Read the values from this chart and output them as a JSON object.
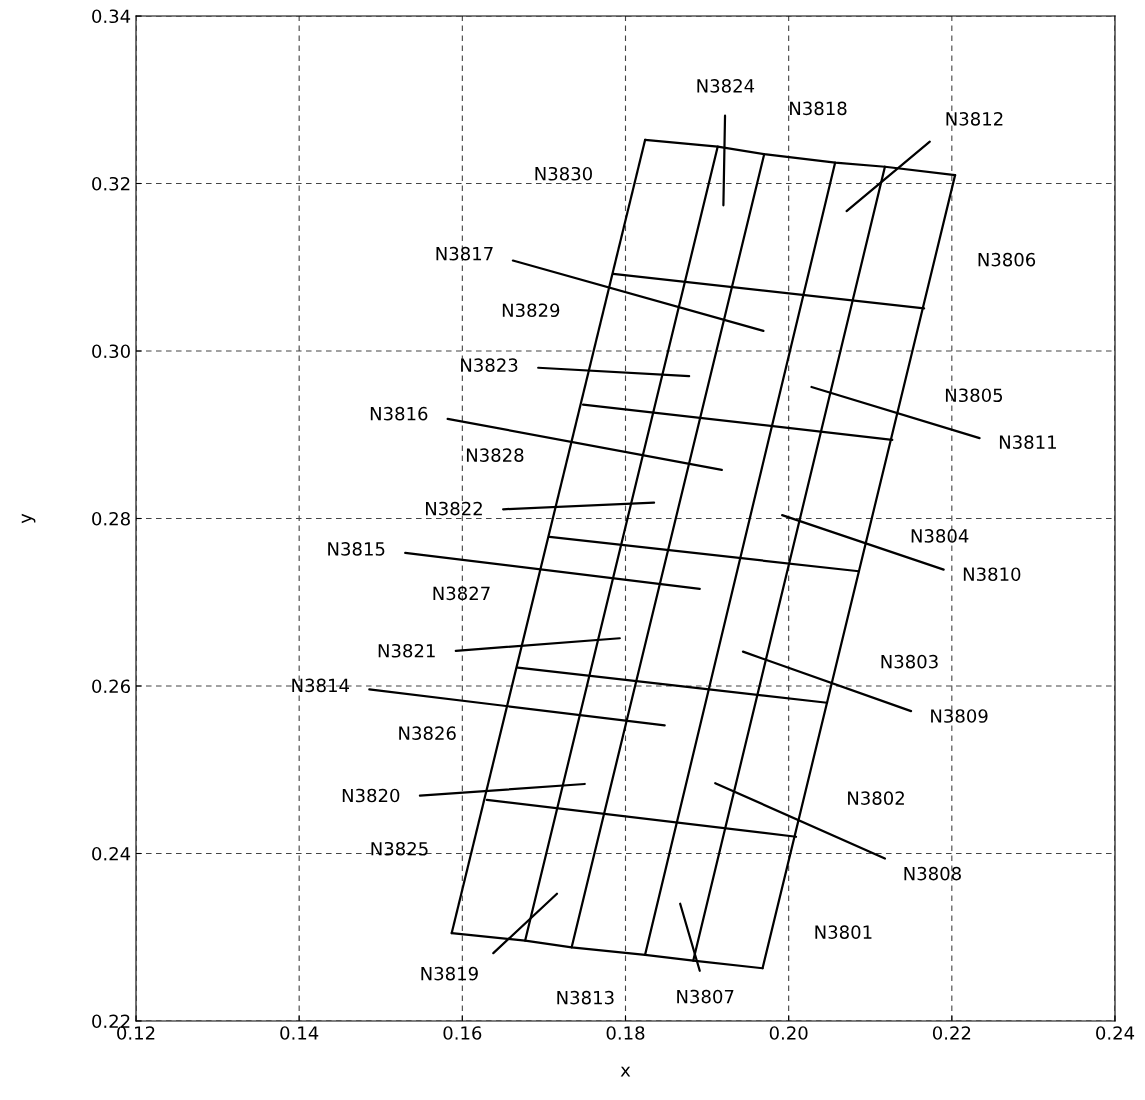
{
  "chart_data": {
    "type": "line",
    "xlabel": "x",
    "ylabel": "y",
    "xlim": [
      0.12,
      0.24
    ],
    "ylim": [
      0.22,
      0.34
    ],
    "xticks": [
      0.12,
      0.14,
      0.16,
      0.18,
      {
        "value": 0.2,
        "label": "0.20"
      },
      0.22,
      0.24
    ],
    "yticks": [
      0.22,
      0.24,
      0.26,
      0.28,
      {
        "value": 0.3,
        "label": "0.30"
      },
      0.32,
      0.34
    ],
    "grid": true,
    "series": [
      {
        "color": "#000000",
        "x": [
          0.1824,
          0.1913,
          0.197,
          0.2057,
          0.2118,
          0.2204
        ],
        "values": [
          0.3252,
          0.3244,
          0.3235,
          0.3225,
          0.322,
          0.321
        ]
      },
      {
        "color": "#000000",
        "x": [
          0.1587,
          0.1677,
          0.1734,
          0.1824,
          0.1883,
          0.1968
        ],
        "values": [
          0.2305,
          0.2296,
          0.2288,
          0.2279,
          0.2272,
          0.2263
        ]
      },
      {
        "color": "#000000",
        "x": [
          0.1824,
          0.1587
        ],
        "values": [
          0.3252,
          0.2305
        ]
      },
      {
        "color": "#000000",
        "x": [
          0.1913,
          0.1677
        ],
        "values": [
          0.3244,
          0.2296
        ]
      },
      {
        "color": "#000000",
        "x": [
          0.197,
          0.1734
        ],
        "values": [
          0.3235,
          0.2288
        ]
      },
      {
        "color": "#000000",
        "x": [
          0.2057,
          0.1824
        ],
        "values": [
          0.3225,
          0.2279
        ]
      },
      {
        "color": "#000000",
        "x": [
          0.2118,
          0.1883
        ],
        "values": [
          0.322,
          0.2272
        ]
      },
      {
        "color": "#000000",
        "x": [
          0.2204,
          0.1968
        ],
        "values": [
          0.321,
          0.2263
        ]
      },
      {
        "color": "#000000",
        "x": [
          0.1785,
          0.2166
        ],
        "values": [
          0.3092,
          0.3051
        ]
      },
      {
        "color": "#000000",
        "x": [
          0.1748,
          0.2127
        ],
        "values": [
          0.2936,
          0.2894
        ]
      },
      {
        "color": "#000000",
        "x": [
          0.1707,
          0.2086
        ],
        "values": [
          0.2778,
          0.2737
        ]
      },
      {
        "color": "#000000",
        "x": [
          0.1668,
          0.2047
        ],
        "values": [
          0.2622,
          0.258
        ]
      },
      {
        "color": "#000000",
        "x": [
          0.163,
          0.2009
        ],
        "values": [
          0.2464,
          0.242
        ]
      },
      {
        "color": "#000000",
        "x": [
          0.1922,
          0.192
        ],
        "values": [
          0.3281,
          0.3174
        ]
      },
      {
        "color": "#000000",
        "x": [
          0.2173,
          0.2071
        ],
        "values": [
          0.325,
          0.3167
        ]
      },
      {
        "color": "#000000",
        "x": [
          0.1662,
          0.1969
        ],
        "values": [
          0.3108,
          0.3024
        ]
      },
      {
        "color": "#000000",
        "x": [
          0.1693,
          0.1878
        ],
        "values": [
          0.298,
          0.297
        ]
      },
      {
        "color": "#000000",
        "x": [
          0.2028,
          0.2234
        ],
        "values": [
          0.2957,
          0.2896
        ]
      },
      {
        "color": "#000000",
        "x": [
          0.1582,
          0.1918
        ],
        "values": [
          0.2919,
          0.2858
        ]
      },
      {
        "color": "#000000",
        "x": [
          0.165,
          0.1835
        ],
        "values": [
          0.2811,
          0.2819
        ]
      },
      {
        "color": "#000000",
        "x": [
          0.1992,
          0.219
        ],
        "values": [
          0.2804,
          0.2739
        ]
      },
      {
        "color": "#000000",
        "x": [
          0.153,
          0.1891
        ],
        "values": [
          0.2759,
          0.2716
        ]
      },
      {
        "color": "#000000",
        "x": [
          0.1592,
          0.1793
        ],
        "values": [
          0.2642,
          0.2657
        ]
      },
      {
        "color": "#000000",
        "x": [
          0.1944,
          0.215
        ],
        "values": [
          0.2641,
          0.257
        ]
      },
      {
        "color": "#000000",
        "x": [
          0.1486,
          0.1848
        ],
        "values": [
          0.2596,
          0.2553
        ]
      },
      {
        "color": "#000000",
        "x": [
          0.1548,
          0.175
        ],
        "values": [
          0.2469,
          0.2483
        ]
      },
      {
        "color": "#000000",
        "x": [
          0.191,
          0.2118
        ],
        "values": [
          0.2484,
          0.2394
        ]
      },
      {
        "color": "#000000",
        "x": [
          0.1638,
          0.1716
        ],
        "values": [
          0.2281,
          0.2352
        ]
      },
      {
        "color": "#000000",
        "x": [
          0.1867,
          0.1891
        ],
        "values": [
          0.234,
          0.226
        ]
      }
    ],
    "annotations": [
      {
        "text": "N3824",
        "x": 0.1922,
        "y": 0.3281
      },
      {
        "text": "N3818",
        "x": 0.203,
        "y": 0.3228
      },
      {
        "text": "N3812",
        "x": 0.2173,
        "y": 0.325
      },
      {
        "text": "N3830",
        "x": 0.181,
        "y": 0.3198
      },
      {
        "text": "N3806",
        "x": 0.2181,
        "y": 0.3119
      },
      {
        "text": "N3817",
        "x": 0.1662,
        "y": 0.3108
      },
      {
        "text": "N3829",
        "x": 0.177,
        "y": 0.3035
      },
      {
        "text": "N3823",
        "x": 0.1693,
        "y": 0.298
      },
      {
        "text": "N3805",
        "x": 0.2141,
        "y": 0.2957
      },
      {
        "text": "N3816",
        "x": 0.1582,
        "y": 0.2919
      },
      {
        "text": "N3811",
        "x": 0.2234,
        "y": 0.2896
      },
      {
        "text": "N3828",
        "x": 0.1726,
        "y": 0.2862
      },
      {
        "text": "N3822",
        "x": 0.165,
        "y": 0.2811
      },
      {
        "text": "N3804",
        "x": 0.2099,
        "y": 0.2789
      },
      {
        "text": "N3815",
        "x": 0.153,
        "y": 0.2759
      },
      {
        "text": "N3810",
        "x": 0.219,
        "y": 0.2739
      },
      {
        "text": "N3827",
        "x": 0.1685,
        "y": 0.2697
      },
      {
        "text": "N3821",
        "x": 0.1592,
        "y": 0.2642
      },
      {
        "text": "N3803",
        "x": 0.2062,
        "y": 0.2639
      },
      {
        "text": "N3814",
        "x": 0.1486,
        "y": 0.2596
      },
      {
        "text": "N3809",
        "x": 0.215,
        "y": 0.257
      },
      {
        "text": "N3826",
        "x": 0.1643,
        "y": 0.253
      },
      {
        "text": "N3820",
        "x": 0.1548,
        "y": 0.2469
      },
      {
        "text": "N3802",
        "x": 0.2021,
        "y": 0.2476
      },
      {
        "text": "N3825",
        "x": 0.1609,
        "y": 0.2392
      },
      {
        "text": "N3808",
        "x": 0.2118,
        "y": 0.2394
      },
      {
        "text": "N3801",
        "x": 0.1981,
        "y": 0.2316
      },
      {
        "text": "N3819",
        "x": 0.1638,
        "y": 0.2281
      },
      {
        "text": "N3813",
        "x": 0.1756,
        "y": 0.2286
      },
      {
        "text": "N3807",
        "x": 0.1891,
        "y": 0.226
      }
    ]
  }
}
